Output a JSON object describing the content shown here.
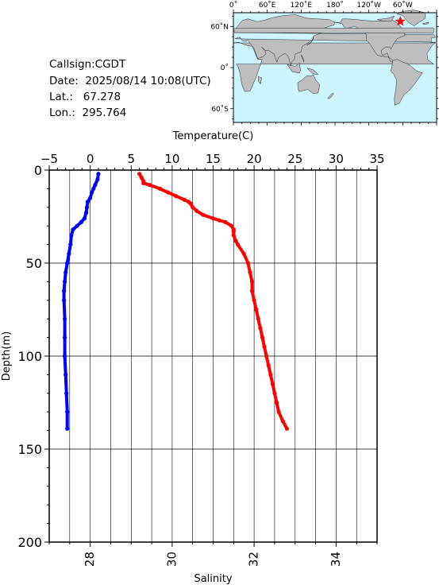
{
  "info": {
    "callsign": "Callsign:CGDT",
    "date": "Date:  2025/08/14 10:08(UTC)",
    "lat": "Lat.:   67.278",
    "lon": "Lon.:  295.764"
  },
  "map": {
    "top_ticks": [
      "0˚",
      "60˚E",
      "120˚E",
      "180˚",
      "120˚W",
      "60˚W"
    ],
    "left_ticks": [
      "60˚N",
      "0˚",
      "60˚S"
    ],
    "ocean_color": "#cdf5ff",
    "land_color": "#bebebe",
    "marker_color": "#ff0000",
    "marker_lon": 295.764,
    "marker_lat": 67.278
  },
  "chart_data": {
    "type": "line",
    "title": "",
    "top_axis": {
      "label": "Temperature(C)",
      "range": [
        -5,
        35
      ],
      "ticks": [
        "−5",
        "0",
        "5",
        "10",
        "15",
        "20",
        "25",
        "30",
        "35"
      ]
    },
    "bottom_axis": {
      "label": "Salinity",
      "range": [
        27,
        35
      ],
      "ticks": [
        "28",
        "30",
        "32",
        "34"
      ]
    },
    "y_axis": {
      "label": "Depth(m)",
      "range": [
        0,
        200
      ],
      "inverted": true,
      "ticks": [
        "0",
        "50",
        "100",
        "150",
        "200"
      ]
    },
    "grid": true,
    "series": [
      {
        "quantity": "temperature",
        "axis": "top",
        "color": "#0000ff",
        "depth": [
          2,
          5,
          8,
          10,
          12,
          15,
          17,
          20,
          23,
          26,
          28,
          30,
          32,
          35,
          40,
          45,
          50,
          55,
          60,
          65,
          70,
          80,
          90,
          100,
          110,
          120,
          130,
          139
        ],
        "values": [
          1.0,
          0.9,
          0.6,
          0.4,
          0.2,
          0.0,
          -0.3,
          -0.4,
          -0.5,
          -0.7,
          -1.1,
          -1.6,
          -2.1,
          -2.3,
          -2.4,
          -2.6,
          -2.8,
          -3.0,
          -3.1,
          -3.2,
          -3.2,
          -3.1,
          -3.1,
          -3.1,
          -3.0,
          -2.9,
          -2.8,
          -2.8
        ]
      },
      {
        "quantity": "salinity",
        "axis": "bottom",
        "color": "#ff0000",
        "depth": [
          2,
          4,
          6,
          7,
          8,
          10,
          12,
          14,
          16,
          17,
          18,
          20,
          22,
          24,
          26,
          27,
          28,
          30,
          32,
          33,
          35,
          38,
          40,
          45,
          50,
          55,
          60,
          65,
          70,
          75,
          80,
          85,
          90,
          95,
          100,
          105,
          110,
          115,
          120,
          125,
          130,
          135,
          139
        ],
        "values": [
          29.2,
          29.25,
          29.3,
          29.3,
          29.45,
          29.7,
          29.9,
          30.1,
          30.3,
          30.4,
          30.45,
          30.5,
          30.6,
          30.75,
          31.0,
          31.15,
          31.3,
          31.45,
          31.5,
          31.5,
          31.5,
          31.55,
          31.6,
          31.75,
          31.85,
          31.9,
          31.95,
          31.95,
          32.0,
          32.05,
          32.1,
          32.15,
          32.2,
          32.25,
          32.3,
          32.35,
          32.4,
          32.45,
          32.5,
          32.55,
          32.6,
          32.7,
          32.8
        ]
      }
    ]
  }
}
